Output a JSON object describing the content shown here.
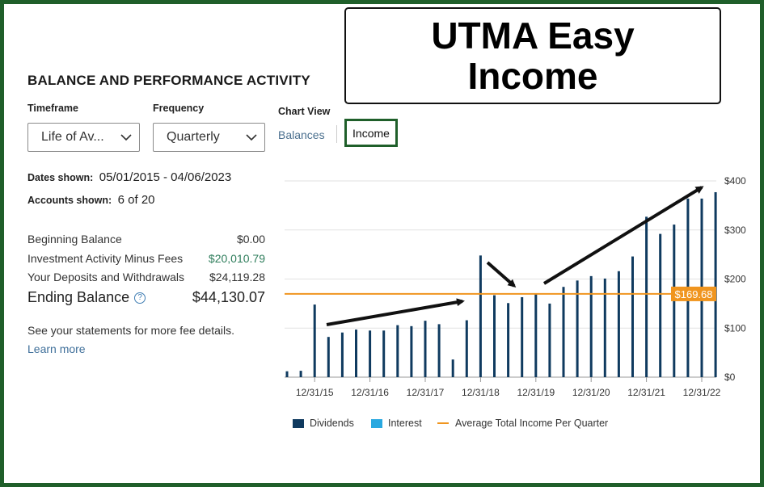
{
  "overlay_title": "UTMA Easy Income",
  "section_heading": "BALANCE AND PERFORMANCE ACTIVITY",
  "timeframe": {
    "label": "Timeframe",
    "value": "Life of Av..."
  },
  "frequency": {
    "label": "Frequency",
    "value": "Quarterly"
  },
  "chart_view": {
    "label": "Chart View",
    "balances": "Balances",
    "income": "Income"
  },
  "dates_shown": {
    "label": "Dates shown:",
    "value": "05/01/2015 - 04/06/2023"
  },
  "accounts_shown": {
    "label": "Accounts shown:",
    "value": "6 of 20"
  },
  "summary": [
    {
      "label": "Beginning Balance",
      "value": "$0.00"
    },
    {
      "label": "Investment Activity Minus Fees",
      "value": "$20,010.79"
    },
    {
      "label": "Your Deposits and Withdrawals",
      "value": "$24,119.28"
    }
  ],
  "ending_balance": {
    "label": "Ending Balance",
    "value": "$44,130.07",
    "help": "?"
  },
  "note": "See your statements for more fee details.",
  "learn_more": "Learn more",
  "legend": {
    "dividends": "Dividends",
    "interest": "Interest",
    "average": "Average Total Income Per Quarter"
  },
  "colors": {
    "dividends": "#0f3a5f",
    "interest": "#29a8e0",
    "average": "#f0951f",
    "frame": "#1f5f2a"
  },
  "chart_data": {
    "type": "bar",
    "y_ticks": [
      "$0",
      "$100",
      "$200",
      "$300",
      "$400"
    ],
    "ylim": [
      0,
      400
    ],
    "x_tick_labels": [
      "12/31/15",
      "12/31/16",
      "12/31/17",
      "12/31/18",
      "12/31/19",
      "12/31/20",
      "12/31/21",
      "12/31/22"
    ],
    "series": [
      {
        "name": "Dividends",
        "values": [
          12,
          13,
          148,
          82,
          91,
          97,
          95,
          95,
          106,
          104,
          115,
          108,
          36,
          116,
          248,
          167,
          151,
          163,
          170,
          150,
          184,
          197,
          206,
          201,
          216,
          246,
          327,
          292,
          311,
          364,
          364,
          377
        ]
      }
    ],
    "average_line": {
      "value": 169.68,
      "label": "$169.68"
    },
    "grid": true
  }
}
